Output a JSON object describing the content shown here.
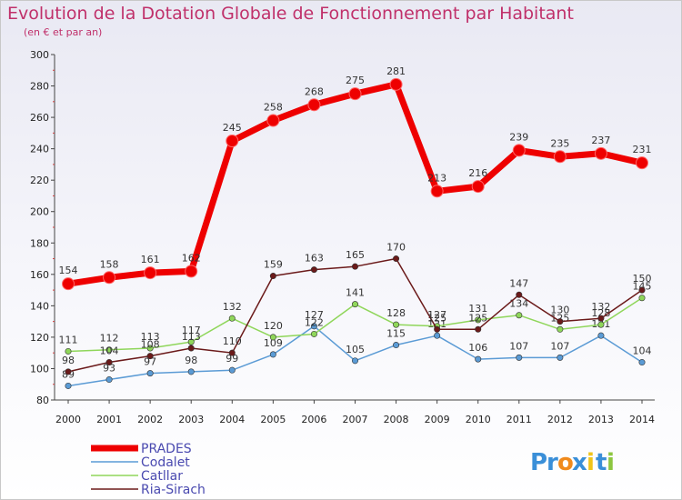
{
  "chart_data": {
    "type": "line",
    "title": "Evolution de la Dotation Globale de Fonctionnement par Habitant",
    "subtitle": "(en € et par an)",
    "xlabel": "",
    "ylabel": "",
    "x": [
      "2000",
      "2001",
      "2002",
      "2003",
      "2004",
      "2005",
      "2006",
      "2007",
      "2008",
      "2009",
      "2010",
      "2011",
      "2012",
      "2013",
      "2014"
    ],
    "ylim": [
      80,
      300
    ],
    "yticks": [
      80,
      100,
      120,
      140,
      160,
      180,
      200,
      220,
      240,
      260,
      280,
      300
    ],
    "grid": false,
    "legend": "bottom-left",
    "series": [
      {
        "name": "PRADES",
        "color": "#ee0000",
        "values": [
          154,
          158,
          161,
          162,
          245,
          258,
          268,
          275,
          281,
          213,
          216,
          239,
          235,
          237,
          231
        ]
      },
      {
        "name": "Codalet",
        "color": "#5b9bd5",
        "values": [
          89,
          93,
          97,
          98,
          99,
          109,
          127,
          105,
          115,
          121,
          106,
          107,
          107,
          121,
          104
        ]
      },
      {
        "name": "Catllar",
        "color": "#8fd65a",
        "values": [
          111,
          112,
          113,
          117,
          132,
          120,
          122,
          141,
          128,
          127,
          131,
          134,
          125,
          128,
          145
        ]
      },
      {
        "name": "Ria-Sirach",
        "color": "#6b1a1a",
        "values": [
          98,
          104,
          108,
          113,
          110,
          159,
          163,
          165,
          170,
          125,
          125,
          147,
          130,
          132,
          150
        ]
      }
    ]
  },
  "logo": {
    "text": "Proxiti",
    "letters": [
      "P",
      "r",
      "o",
      "x",
      "i",
      "t",
      "i"
    ],
    "colors": [
      "#3a8fd8",
      "#3a8fd8",
      "#f08a1c",
      "#3a8fd8",
      "#f0c419",
      "#3a8fd8",
      "#8cc63f"
    ]
  }
}
